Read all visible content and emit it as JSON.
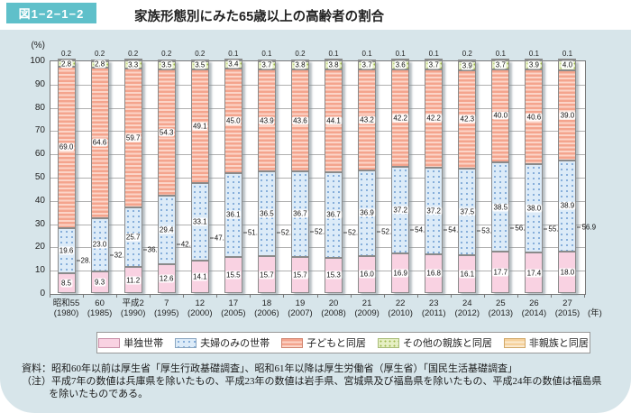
{
  "header": {
    "figure_label": "図1−2−1−2",
    "title": "家族形態別にみた65歳以上の高齢者の割合"
  },
  "chart_data": {
    "type": "bar",
    "stacked": true,
    "title": "家族形態別にみた65歳以上の高齢者の割合",
    "unit_label": "(%)",
    "year_axis_suffix": "(年)",
    "ylim": [
      0,
      100
    ],
    "yticks": [
      0,
      10,
      20,
      30,
      40,
      50,
      60,
      70,
      80,
      90,
      100
    ],
    "grid": true,
    "legend_position": "bottom",
    "categories": [
      {
        "era": "昭和55",
        "year": "(1980)"
      },
      {
        "era": "60",
        "year": "(1985)"
      },
      {
        "era": "平成2",
        "year": "(1990)"
      },
      {
        "era": "7",
        "year": "(1995)"
      },
      {
        "era": "12",
        "year": "(2000)"
      },
      {
        "era": "17",
        "year": "(2005)"
      },
      {
        "era": "18",
        "year": "(2006)"
      },
      {
        "era": "19",
        "year": "(2007)"
      },
      {
        "era": "20",
        "year": "(2008)"
      },
      {
        "era": "21",
        "year": "(2009)"
      },
      {
        "era": "22",
        "year": "(2010)"
      },
      {
        "era": "23",
        "year": "(2011)"
      },
      {
        "era": "24",
        "year": "(2012)"
      },
      {
        "era": "25",
        "year": "(2013)"
      },
      {
        "era": "26",
        "year": "(2014)"
      },
      {
        "era": "27",
        "year": "(2015)"
      }
    ],
    "series": [
      {
        "name": "単独世帯",
        "key": "single-household",
        "values": [
          8.5,
          9.3,
          11.2,
          12.6,
          14.1,
          15.5,
          15.7,
          15.7,
          15.3,
          16.0,
          16.9,
          16.8,
          16.1,
          17.7,
          17.4,
          18.0
        ]
      },
      {
        "name": "夫婦のみの世帯",
        "key": "couple-only-household",
        "values": [
          19.6,
          23.0,
          25.7,
          29.4,
          33.1,
          36.1,
          36.5,
          36.7,
          36.7,
          36.9,
          37.2,
          37.2,
          37.5,
          38.5,
          38.0,
          38.9
        ]
      },
      {
        "name": "子どもと同居",
        "key": "living-with-children",
        "values": [
          69.0,
          64.6,
          59.7,
          54.3,
          49.1,
          45.0,
          43.9,
          43.6,
          44.1,
          43.2,
          42.2,
          42.2,
          42.3,
          40.0,
          40.6,
          39.0
        ]
      },
      {
        "name": "その他の親族と同居",
        "key": "living-with-other-relatives",
        "values": [
          2.8,
          2.8,
          3.3,
          3.5,
          3.5,
          3.4,
          3.7,
          3.8,
          3.8,
          3.7,
          3.6,
          3.7,
          3.9,
          3.7,
          3.9,
          4.0
        ]
      },
      {
        "name": "非親族と同居",
        "key": "living-with-non-relatives",
        "values": [
          0.2,
          0.2,
          0.2,
          0.2,
          0.2,
          0.1,
          0.1,
          0.2,
          0.1,
          0.1,
          0.1,
          0.1,
          0.2,
          0.1,
          0.1,
          0.1
        ]
      }
    ],
    "totals_single_plus_couple": [
      28.1,
      32.3,
      36.9,
      42.0,
      47.2,
      51.6,
      52.2,
      52.4,
      52.0,
      52.9,
      54.0,
      54.0,
      53.6,
      56.2,
      55.4,
      56.9
    ]
  },
  "footnotes": {
    "source": "資料：昭和60年以前は厚生省「厚生行政基礎調査」、昭和61年以降は厚生労働省（厚生省）「国民生活基礎調査」",
    "note": "（注）平成7年の数値は兵庫県を除いたもの、平成23年の数値は岩手県、宮城県及び福島県を除いたもの、平成24年の数値は福島県を除いたものである。"
  },
  "colors": {
    "badge_teal": "#5fc0ca",
    "panel_background": "#d7e5ea",
    "single_household_fill": "#f9d2e2",
    "couple_only_fill": "#dcebf8",
    "couple_only_dot": "#7fa9d8",
    "living_with_children_fill": "#f4a48d",
    "other_relatives_fill": "#e6efc4",
    "other_relatives_dot": "#9db84e",
    "non_relatives_fill": "#f6d19b"
  }
}
